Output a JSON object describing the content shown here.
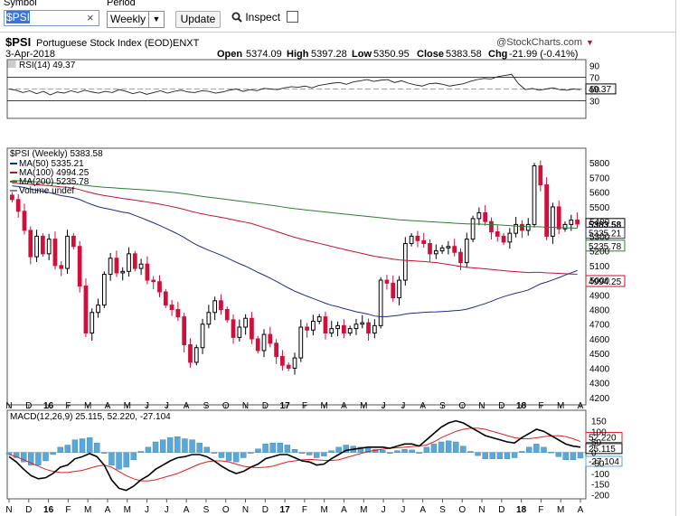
{
  "toolbar": {
    "symbol_label": "Symbol",
    "symbol_value": "$PSI",
    "clear_glyph": "×",
    "period_label": "Period",
    "period_value": "Weekly",
    "update_label": "Update",
    "inspect_label": "Inspect",
    "inspect_icon": "magnifier-icon"
  },
  "header": {
    "symbol": "$PSI",
    "name": "Portuguese Stock Index (EOD)",
    "exchange": "ENXT",
    "date": "3-Apr-2018",
    "open_label": "Open",
    "open": "5374.09",
    "high_label": "High",
    "high": "5397.28",
    "low_label": "Low",
    "low": "5350.95",
    "close_label": "Close",
    "close": "5383.58",
    "chg_label": "Chg",
    "chg": "-21.99 (-0.41%)",
    "watermark": "@StockCharts.com"
  },
  "colors": {
    "up": "#000000",
    "down": "#d0103a",
    "ma50": "#1e2a8c",
    "ma100": "#c8102e",
    "ma200": "#2e7d32",
    "macd_hist": "#5aa8d8",
    "macd_line": "#000000",
    "signal_line": "#e02020"
  },
  "chart_data": [
    {
      "type": "line",
      "panel": "RSI",
      "title": "RSI(14) 49.37",
      "ylim": [
        0,
        100
      ],
      "yticks": [
        "90",
        "70",
        "50",
        "30"
      ],
      "reference_lines": [
        70,
        30
      ],
      "current_label": "49.37",
      "series": [
        {
          "name": "RSI(14)",
          "values": [
            50,
            48,
            44,
            47,
            42,
            46,
            40,
            45,
            43,
            47,
            44,
            48,
            45,
            43,
            46,
            44,
            49,
            46,
            42,
            45,
            41,
            44,
            47,
            43,
            46,
            48,
            45,
            44,
            47,
            46,
            43,
            45,
            48,
            50,
            46,
            49,
            47,
            51,
            50,
            49,
            52,
            54,
            53,
            55,
            52,
            56,
            58,
            60,
            61,
            58,
            62,
            64,
            66,
            63,
            65,
            66,
            61,
            64,
            60,
            57,
            55,
            59,
            60,
            58,
            55,
            57,
            59,
            63,
            66,
            68,
            67,
            71,
            73,
            75,
            59,
            49,
            51,
            48,
            50,
            52,
            49,
            48,
            50,
            49
          ]
        }
      ]
    },
    {
      "type": "candlestick",
      "panel": "price",
      "title": "$PSI (Weekly) 5383.58",
      "ylim": [
        4150,
        5900
      ],
      "yticks": [
        "5800",
        "5700",
        "5600",
        "5500",
        "5400",
        "5300",
        "5200",
        "5100",
        "5000",
        "4900",
        "4800",
        "4700",
        "4600",
        "4500",
        "4400",
        "4300",
        "4200"
      ],
      "xticks": [
        "N",
        "D",
        "16",
        "F",
        "M",
        "A",
        "M",
        "J",
        "J",
        "A",
        "S",
        "O",
        "N",
        "D",
        "17",
        "F",
        "M",
        "A",
        "M",
        "J",
        "J",
        "A",
        "S",
        "O",
        "N",
        "D",
        "18",
        "F",
        "M",
        "A"
      ],
      "legend": [
        "MA(50) 5335.21",
        "MA(100) 4994.25",
        "MA(200) 5235.78",
        "Volume undef"
      ],
      "price_tags": [
        "5383.58",
        "5335.21",
        "5235.78",
        "4994.25"
      ],
      "close": [
        5550,
        5470,
        5340,
        5160,
        5300,
        5180,
        5280,
        5100,
        5080,
        5300,
        5230,
        4960,
        4640,
        4780,
        4830,
        5040,
        5150,
        5050,
        5060,
        5180,
        5080,
        5110,
        5000,
        4990,
        4920,
        4830,
        4800,
        4750,
        4560,
        4440,
        4540,
        4700,
        4780,
        4860,
        4800,
        4730,
        4610,
        4680,
        4740,
        4600,
        4520,
        4630,
        4570,
        4480,
        4420,
        4400,
        4470,
        4680,
        4660,
        4720,
        4750,
        4640,
        4670,
        4690,
        4640,
        4670,
        4700,
        4710,
        4640,
        4690,
        5000,
        4980,
        4880,
        5000,
        5250,
        5300,
        5270,
        5250,
        5180,
        5200,
        5220,
        5230,
        5190,
        5120,
        5280,
        5420,
        5460,
        5400,
        5330,
        5300,
        5260,
        5320,
        5380,
        5340,
        5380,
        5780,
        5650,
        5300,
        5500,
        5350,
        5380,
        5410,
        5383
      ]
    },
    {
      "type": "line",
      "panel": "MACD",
      "title": "MACD(12,26,9) 25.115, 52.220, -27.104",
      "ylim": [
        -220,
        200
      ],
      "yticks": [
        "150",
        "100",
        "50",
        "0",
        "-50",
        "-100",
        "-150",
        "-200"
      ],
      "price_tags": [
        "52.220",
        "25.115",
        "-27.104"
      ],
      "series": [
        {
          "name": "MACD(12,26,9)",
          "values": [
            -20,
            -45,
            -80,
            -110,
            -125,
            -120,
            -100,
            -70,
            -60,
            -30,
            -20,
            -5,
            -20,
            -60,
            -130,
            -170,
            -180,
            -160,
            -130,
            -110,
            -80,
            -60,
            -40,
            -25,
            -20,
            -10,
            -10,
            -20,
            -40,
            -65,
            -85,
            -100,
            -90,
            -70,
            -55,
            -30,
            -20,
            -10,
            -10,
            -25,
            -40,
            -45,
            -60,
            -55,
            -30,
            -10,
            10,
            15,
            20,
            25,
            25,
            25,
            20,
            30,
            40,
            40,
            30,
            60,
            90,
            120,
            140,
            150,
            140,
            120,
            100,
            80,
            70,
            60,
            50,
            45,
            70,
            90,
            110,
            100,
            80,
            60,
            40,
            30,
            25
          ]
        },
        {
          "name": "Signal",
          "values": [
            -10,
            -20,
            -35,
            -50,
            -65,
            -80,
            -90,
            -95,
            -95,
            -90,
            -85,
            -75,
            -65,
            -60,
            -70,
            -90,
            -110,
            -125,
            -135,
            -135,
            -130,
            -120,
            -110,
            -100,
            -85,
            -70,
            -55,
            -45,
            -40,
            -40,
            -45,
            -55,
            -65,
            -70,
            -72,
            -70,
            -65,
            -55,
            -45,
            -40,
            -35,
            -33,
            -35,
            -38,
            -38,
            -35,
            -25,
            -15,
            -5,
            5,
            10,
            15,
            20,
            22,
            25,
            28,
            30,
            35,
            50,
            70,
            85,
            100,
            110,
            115,
            115,
            110,
            100,
            90,
            80,
            70,
            65,
            65,
            70,
            75,
            78,
            80,
            75,
            65,
            52
          ]
        },
        {
          "name": "Histogram",
          "values": [
            -27
          ]
        }
      ]
    }
  ]
}
